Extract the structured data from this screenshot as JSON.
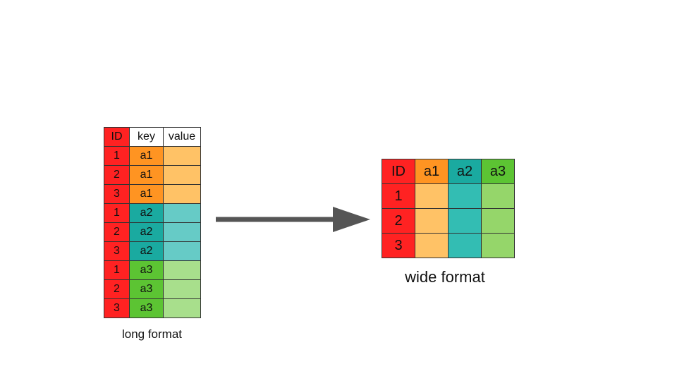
{
  "colors": {
    "id": "#ff2222",
    "header_white": "#ffffff",
    "a1_key": "#ff9422",
    "a1_value": "#ffc266",
    "a2_key": "#1aaaa0",
    "a2_value": "#66cbc6",
    "a3_key": "#5cc433",
    "a3_value": "#a8df8c",
    "wide_a1_header": "#ff9422",
    "wide_a2_header": "#1aaaa0",
    "wide_a3_header": "#5cc433",
    "wide_a1_cell": "#ffc266",
    "wide_a2_cell": "#33bdb3",
    "wide_a3_cell": "#95d66a",
    "arrow": "#555555"
  },
  "long_table": {
    "headers": [
      "ID",
      "key",
      "value"
    ],
    "rows": [
      {
        "id": "1",
        "key": "a1",
        "value": ""
      },
      {
        "id": "2",
        "key": "a1",
        "value": ""
      },
      {
        "id": "3",
        "key": "a1",
        "value": ""
      },
      {
        "id": "1",
        "key": "a2",
        "value": ""
      },
      {
        "id": "2",
        "key": "a2",
        "value": ""
      },
      {
        "id": "3",
        "key": "a2",
        "value": ""
      },
      {
        "id": "1",
        "key": "a3",
        "value": ""
      },
      {
        "id": "2",
        "key": "a3",
        "value": ""
      },
      {
        "id": "3",
        "key": "a3",
        "value": ""
      }
    ],
    "caption": "long format"
  },
  "wide_table": {
    "headers": [
      "ID",
      "a1",
      "a2",
      "a3"
    ],
    "rows": [
      {
        "id": "1"
      },
      {
        "id": "2"
      },
      {
        "id": "3"
      }
    ],
    "caption": "wide format"
  }
}
